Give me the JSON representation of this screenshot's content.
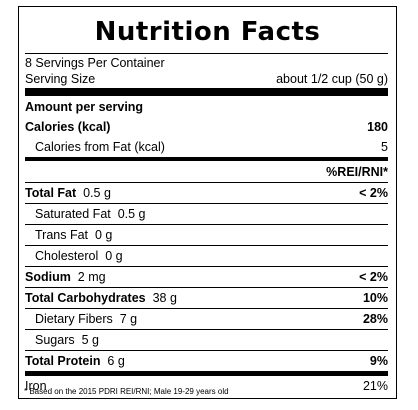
{
  "title": "Nutrition Facts",
  "servings_per_container": "8 Servings Per Container",
  "serving_size": {
    "label": "Serving Size",
    "value": "about 1/2 cup (50 g)"
  },
  "amount_per_serving": "Amount per serving",
  "calories": {
    "label": "Calories (kcal)",
    "value": "180"
  },
  "calories_from_fat": {
    "label": "Calories from Fat (kcal)",
    "value": "5"
  },
  "rei_header": "%REI/RNI*",
  "nutrients": [
    {
      "name": "Total Fat",
      "amount": "0.5 g",
      "pct": "< 2%"
    },
    {
      "name": "Saturated Fat",
      "amount": "0.5 g",
      "pct": ""
    },
    {
      "name": "Trans Fat",
      "amount": "0 g",
      "pct": ""
    },
    {
      "name": "Cholesterol",
      "amount": "0 g",
      "pct": ""
    },
    {
      "name": "Sodium",
      "amount": "2 mg",
      "pct": "< 2%"
    },
    {
      "name": "Total Carbohydrates",
      "amount": "38 g",
      "pct": "10%"
    },
    {
      "name": "Dietary Fibers",
      "amount": "7 g",
      "pct": "28%"
    },
    {
      "name": "Sugars",
      "amount": "5 g",
      "pct": ""
    },
    {
      "name": "Total Protein",
      "amount": "6 g",
      "pct": "9%"
    }
  ],
  "iron": {
    "name": "Iron",
    "pct": "21%"
  },
  "footnote": "* Based on the 2015 PDRI REI/RNI; Male 19-29 years old"
}
